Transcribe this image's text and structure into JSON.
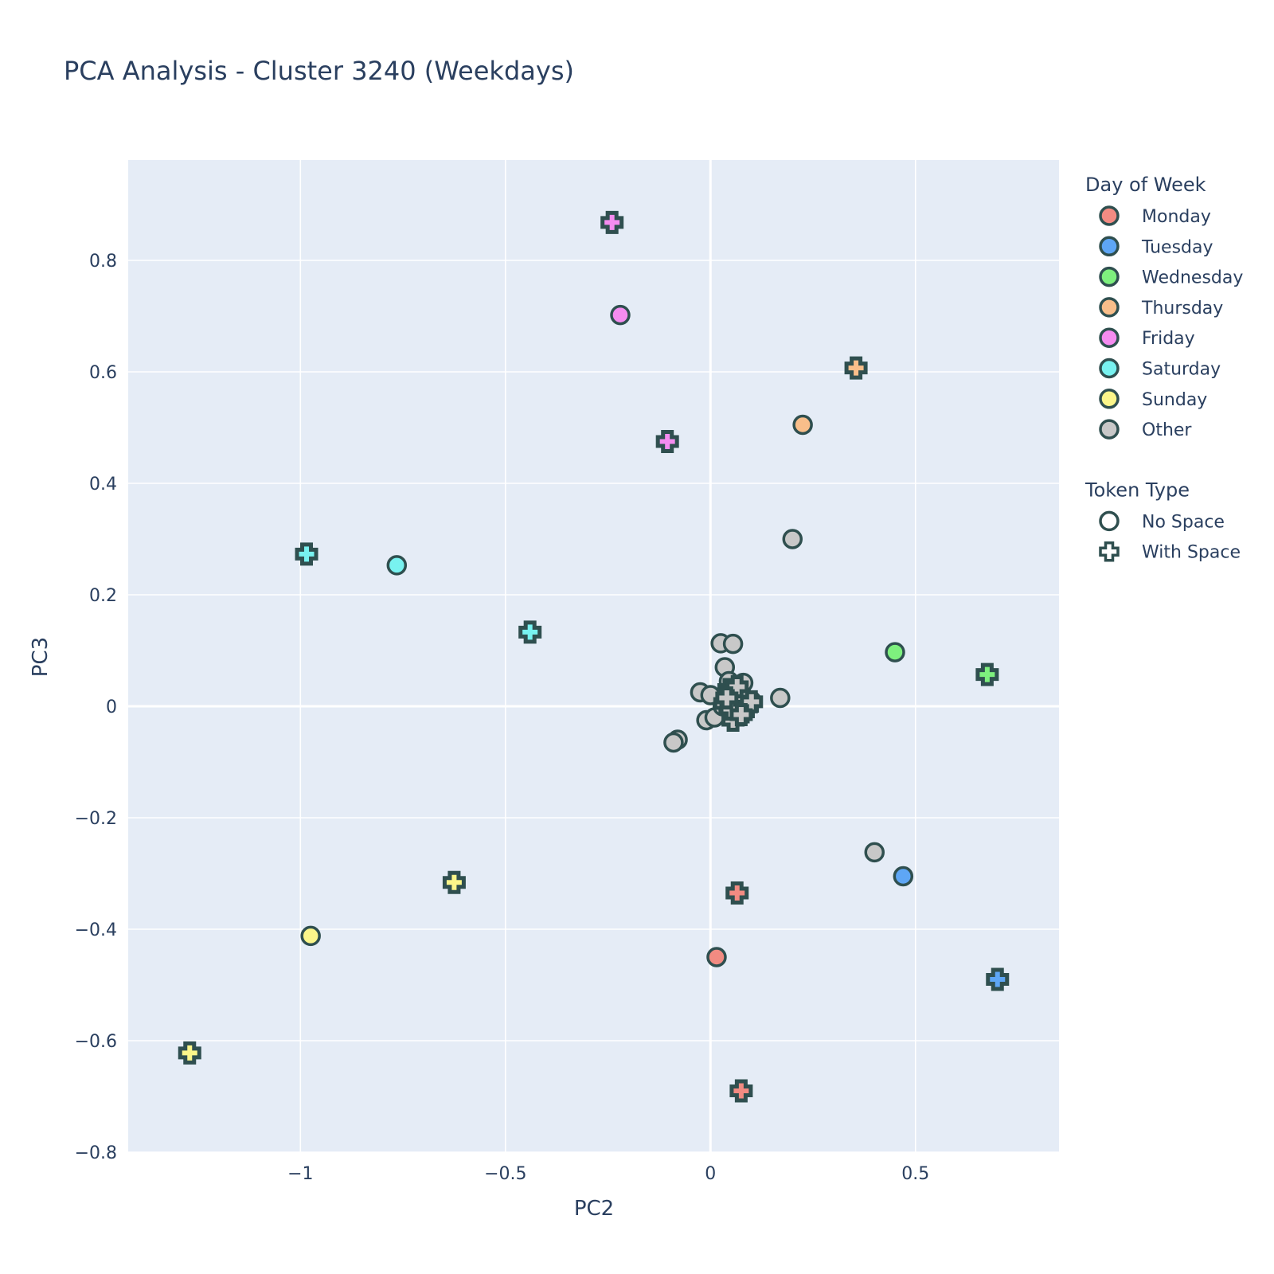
{
  "colors": {
    "plot_bg": "#e5ecf6",
    "grid": "#ffffff",
    "text": "#2a3f5f",
    "marker_outline": "#2f4f4f"
  },
  "chart_data": {
    "type": "scatter",
    "title": "PCA Analysis - Cluster 3240 (Weekdays)",
    "xlabel": "PC2",
    "ylabel": "PC3",
    "xlim": [
      -1.42,
      0.85
    ],
    "ylim": [
      -0.8,
      0.98
    ],
    "xticks": [
      -1,
      -0.5,
      0,
      0.5
    ],
    "xtick_labels": [
      "−1",
      "−0.5",
      "0",
      "0.5"
    ],
    "yticks": [
      -0.8,
      -0.6,
      -0.4,
      -0.2,
      0,
      0.2,
      0.4,
      0.6,
      0.8
    ],
    "ytick_labels": [
      "−0.8",
      "−0.6",
      "−0.4",
      "−0.2",
      "0",
      "0.2",
      "0.4",
      "0.6",
      "0.8"
    ],
    "grid": true,
    "legend_placement": "right",
    "legend_groups": [
      {
        "title": "Day of Week",
        "items": [
          {
            "label": "Monday",
            "color": "#f28b82",
            "symbol": "circle"
          },
          {
            "label": "Tuesday",
            "color": "#5ea6f5",
            "symbol": "circle"
          },
          {
            "label": "Wednesday",
            "color": "#7ef07e",
            "symbol": "circle"
          },
          {
            "label": "Thursday",
            "color": "#f8be8a",
            "symbol": "circle"
          },
          {
            "label": "Friday",
            "color": "#f58cf0",
            "symbol": "circle"
          },
          {
            "label": "Saturday",
            "color": "#78f2f0",
            "symbol": "circle"
          },
          {
            "label": "Sunday",
            "color": "#fbf68a",
            "symbol": "circle"
          },
          {
            "label": "Other",
            "color": "#c8c8c8",
            "symbol": "circle"
          }
        ]
      },
      {
        "title": "Token Type",
        "items": [
          {
            "label": "No Space",
            "color": "#ffffff",
            "symbol": "circle"
          },
          {
            "label": "With Space",
            "color": "#ffffff",
            "symbol": "cross"
          }
        ]
      }
    ],
    "series": [
      {
        "day": "Monday",
        "token": "No Space",
        "points": [
          [
            0.015,
            -0.45
          ]
        ]
      },
      {
        "day": "Monday",
        "token": "With Space",
        "points": [
          [
            0.065,
            -0.335
          ],
          [
            0.075,
            -0.69
          ]
        ]
      },
      {
        "day": "Tuesday",
        "token": "No Space",
        "points": [
          [
            0.47,
            -0.305
          ]
        ]
      },
      {
        "day": "Tuesday",
        "token": "With Space",
        "points": [
          [
            0.7,
            -0.49
          ]
        ]
      },
      {
        "day": "Wednesday",
        "token": "No Space",
        "points": [
          [
            0.45,
            0.097
          ]
        ]
      },
      {
        "day": "Wednesday",
        "token": "With Space",
        "points": [
          [
            0.675,
            0.057
          ]
        ]
      },
      {
        "day": "Thursday",
        "token": "No Space",
        "points": [
          [
            0.225,
            0.505
          ]
        ]
      },
      {
        "day": "Thursday",
        "token": "With Space",
        "points": [
          [
            0.355,
            0.607
          ]
        ]
      },
      {
        "day": "Friday",
        "token": "No Space",
        "points": [
          [
            -0.22,
            0.702
          ]
        ]
      },
      {
        "day": "Friday",
        "token": "With Space",
        "points": [
          [
            -0.105,
            0.475
          ],
          [
            -0.24,
            0.868
          ]
        ]
      },
      {
        "day": "Saturday",
        "token": "No Space",
        "points": [
          [
            -0.765,
            0.253
          ]
        ]
      },
      {
        "day": "Saturday",
        "token": "With Space",
        "points": [
          [
            -0.44,
            0.133
          ],
          [
            -0.985,
            0.273
          ]
        ]
      },
      {
        "day": "Sunday",
        "token": "No Space",
        "points": [
          [
            -0.975,
            -0.412
          ]
        ]
      },
      {
        "day": "Sunday",
        "token": "With Space",
        "points": [
          [
            -0.625,
            -0.316
          ],
          [
            -1.27,
            -0.622
          ]
        ]
      },
      {
        "day": "Other",
        "token": "No Space",
        "points": [
          [
            0.2,
            0.3
          ],
          [
            0.4,
            -0.262
          ],
          [
            0.025,
            0.113
          ],
          [
            0.055,
            0.112
          ],
          [
            0.035,
            0.07
          ],
          [
            0.17,
            0.015
          ],
          [
            -0.025,
            0.025
          ],
          [
            0.0,
            0.02
          ],
          [
            0.08,
            0.042
          ],
          [
            0.045,
            0.045
          ],
          [
            -0.01,
            -0.025
          ],
          [
            0.01,
            -0.02
          ],
          [
            -0.08,
            -0.06
          ],
          [
            -0.09,
            -0.065
          ],
          [
            0.05,
            0.01
          ],
          [
            0.07,
            -0.005
          ],
          [
            0.09,
            0.005
          ],
          [
            0.1,
            0.01
          ],
          [
            0.03,
            0.0
          ],
          [
            0.06,
            0.025
          ],
          [
            0.06,
            -0.02
          ],
          [
            0.075,
            0.015
          ],
          [
            0.04,
            0.02
          ]
        ]
      },
      {
        "day": "Other",
        "token": "With Space",
        "points": [
          [
            0.045,
            0.03
          ],
          [
            0.06,
            0.01
          ],
          [
            0.08,
            -0.01
          ],
          [
            0.055,
            -0.025
          ],
          [
            0.035,
            0.005
          ],
          [
            0.07,
            0.02
          ],
          [
            0.09,
            0.0
          ],
          [
            0.065,
            0.035
          ],
          [
            0.05,
            -0.005
          ],
          [
            0.1,
            0.008
          ],
          [
            0.04,
            0.015
          ],
          [
            0.075,
            -0.015
          ]
        ]
      }
    ]
  }
}
